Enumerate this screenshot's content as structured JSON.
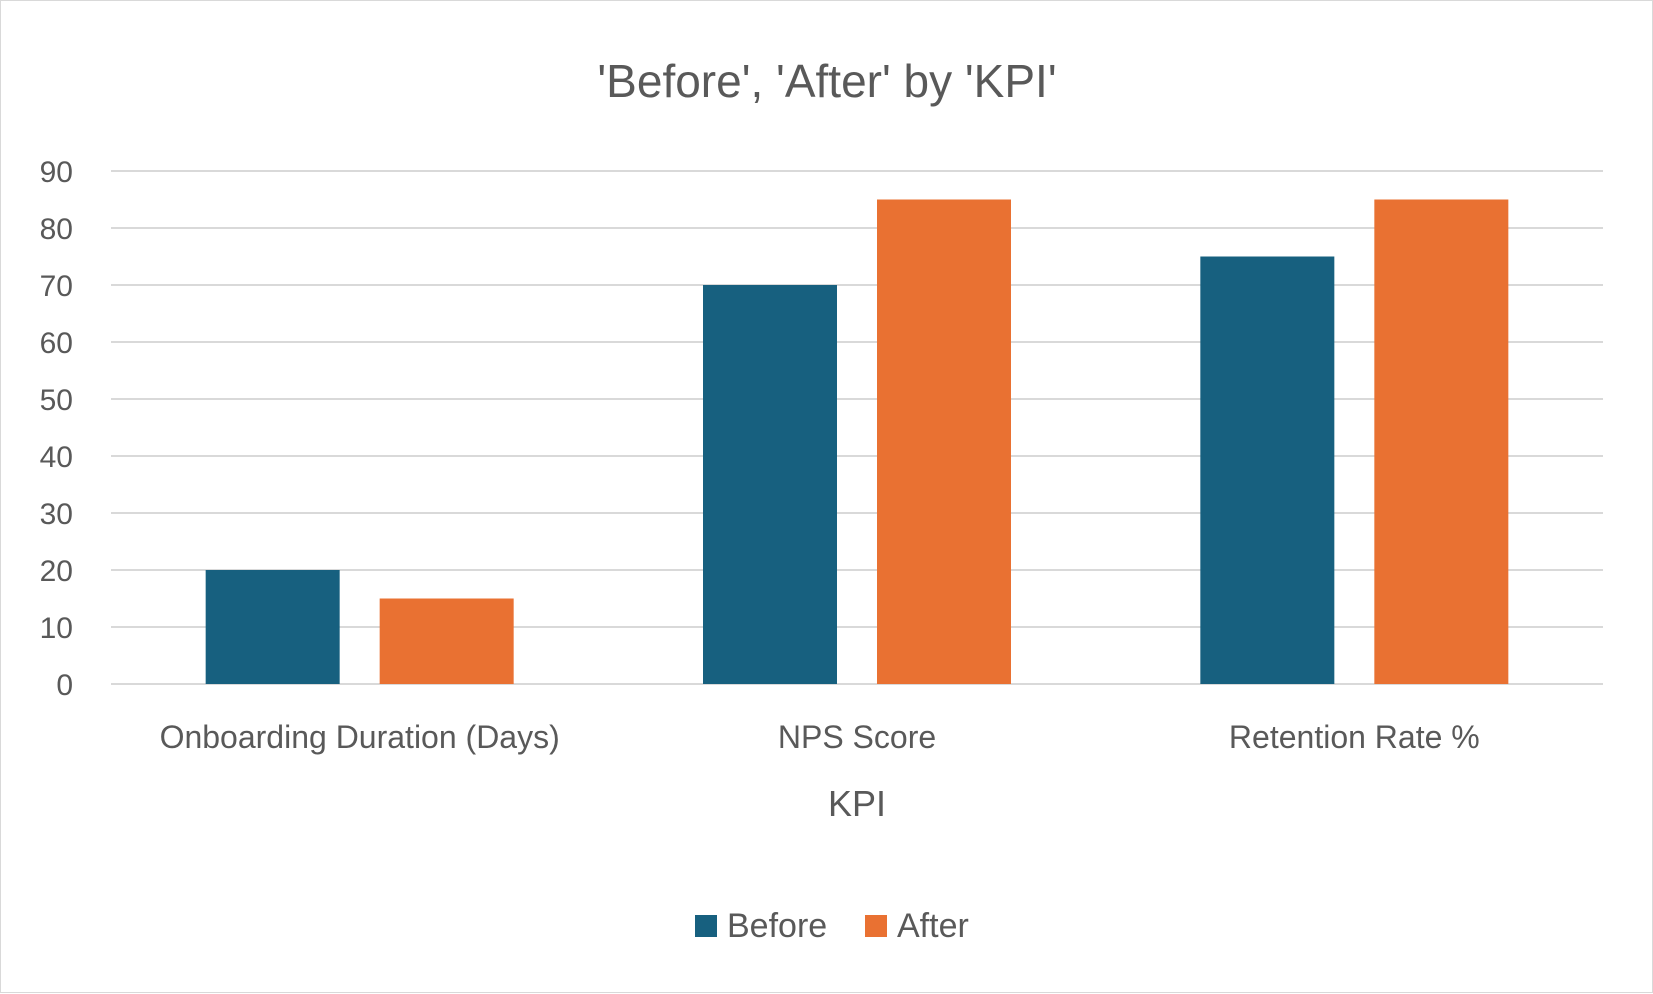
{
  "chart_data": {
    "type": "bar",
    "title": "'Before', 'After' by 'KPI'",
    "xlabel": "KPI",
    "ylabel": "",
    "categories": [
      "Onboarding Duration (Days)",
      "NPS Score",
      "Retention Rate %"
    ],
    "series": [
      {
        "name": "Before",
        "values": [
          20,
          70,
          75
        ],
        "color": "#17607f"
      },
      {
        "name": "After",
        "values": [
          15,
          85,
          85
        ],
        "color": "#e97132"
      }
    ],
    "ylim": [
      0,
      90
    ],
    "yticks": [
      0,
      10,
      20,
      30,
      40,
      50,
      60,
      70,
      80,
      90
    ],
    "grid": true,
    "legend": "bottom-center"
  },
  "colors": {
    "gridline": "#d9d9d9",
    "text": "#595959",
    "border": "#d9d9d9"
  }
}
